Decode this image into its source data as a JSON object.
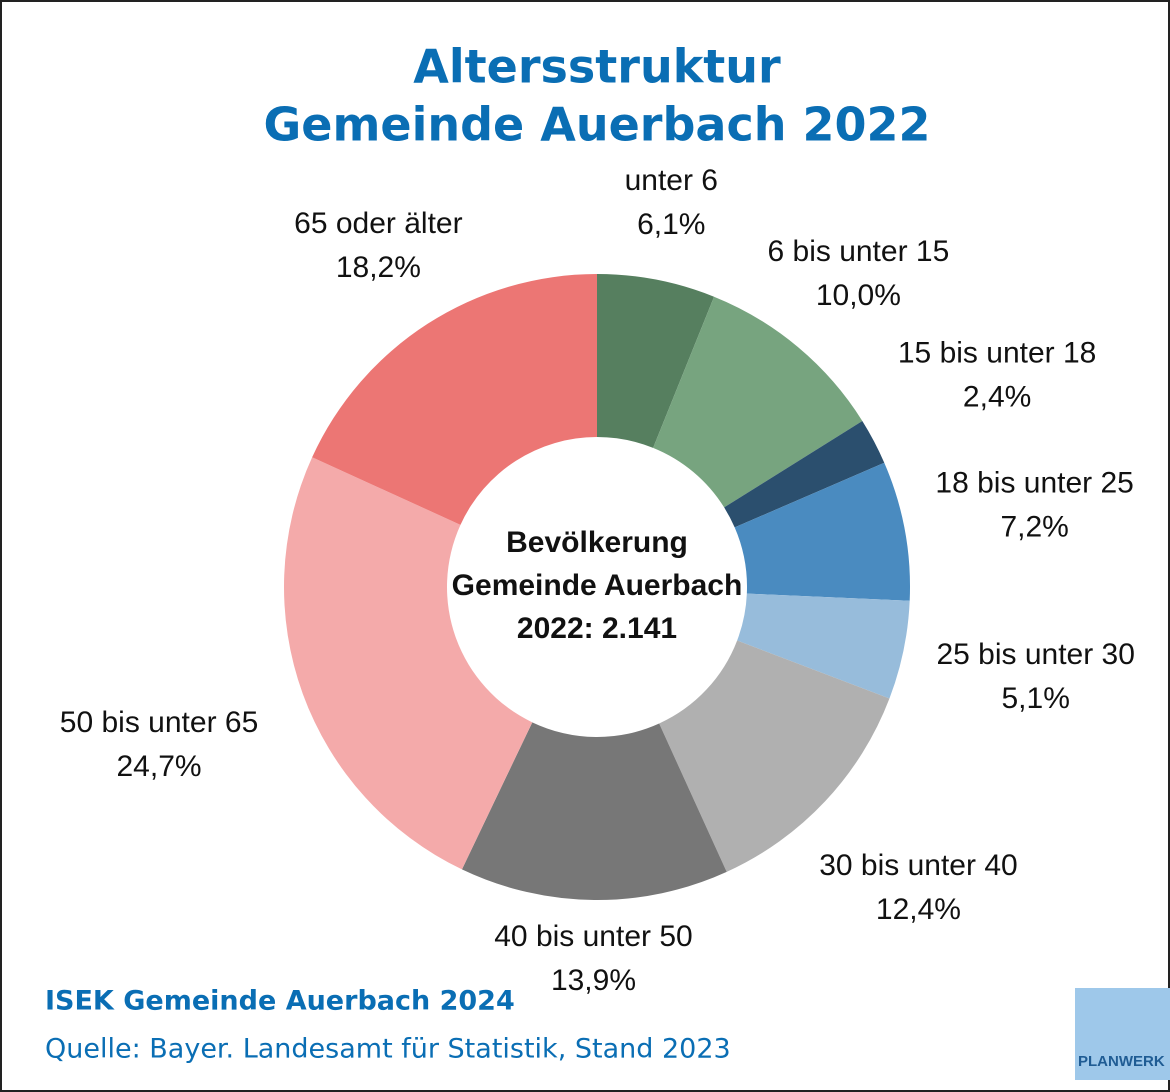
{
  "chart_data": {
    "type": "donut",
    "title": [
      "Altersstruktur",
      "Gemeinde Auerbach 2022"
    ],
    "center_label": [
      "Bevölkerung",
      "Gemeinde Auerbach",
      "2022: 2.141"
    ],
    "categories": [
      "unter 6",
      "6 bis unter 15",
      "15 bis unter 18",
      "18 bis unter 25",
      "25 bis unter 30",
      "30 bis unter 40",
      "40 bis unter 50",
      "50 bis unter 65",
      "65 oder älter"
    ],
    "values": [
      6.1,
      10.0,
      2.4,
      7.2,
      5.1,
      12.4,
      13.9,
      24.7,
      18.2
    ],
    "value_labels": [
      "6,1%",
      "10,0%",
      "2,4%",
      "7,2%",
      "5,1%",
      "12,4%",
      "13,9%",
      "24,7%",
      "18,2%"
    ],
    "colors": [
      "#567f5f",
      "#77a47f",
      "#2b4f6e",
      "#4a8bc0",
      "#97bcdb",
      "#b0b0b0",
      "#777777",
      "#f4aaaa",
      "#ec7674"
    ],
    "footer": [
      "ISEK Gemeinde Auerbach 2024",
      "Quelle: Bayer. Landesamt für Statistik, Stand 2023"
    ],
    "logo": "PLANWERK"
  }
}
